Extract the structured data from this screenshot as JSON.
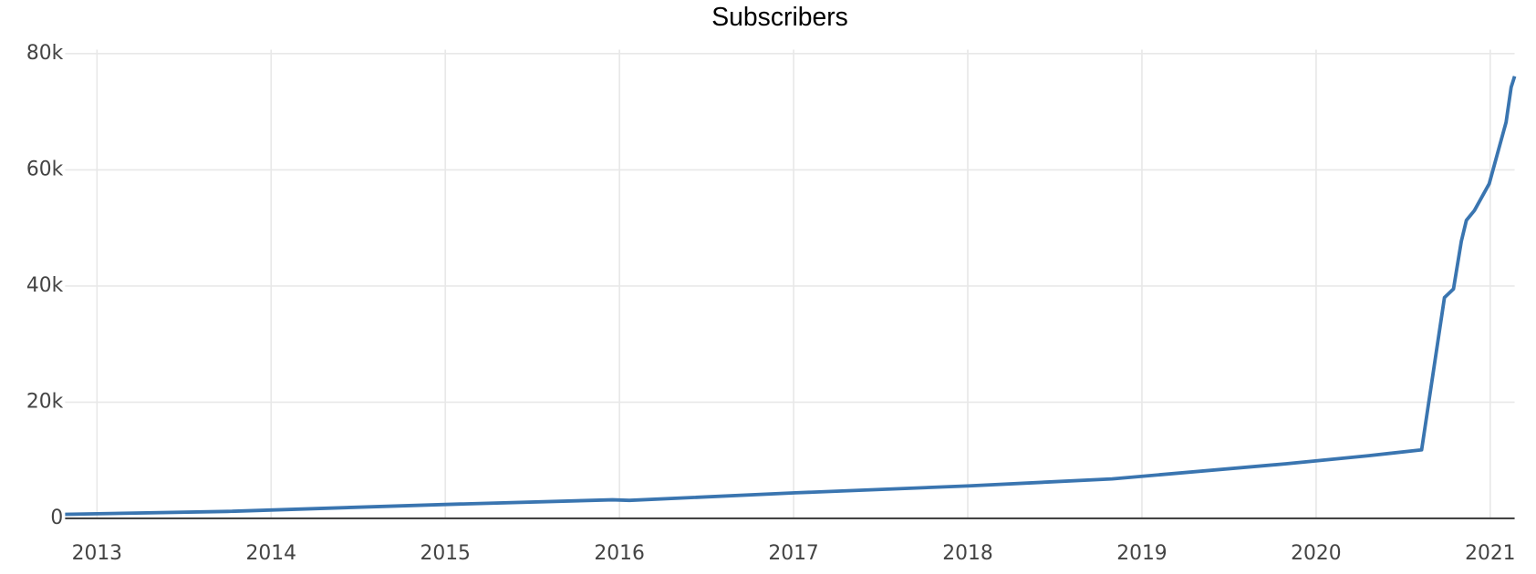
{
  "chart_data": {
    "type": "line",
    "title": "Subscribers",
    "xlim": [
      2012.817,
      2021.14
    ],
    "xticks": [
      2013,
      2014,
      2015,
      2016,
      2017,
      2018,
      2019,
      2020,
      2021
    ],
    "ylim": [
      0,
      80000
    ],
    "yticks": [
      0,
      {
        "value": 20000,
        "label": "20k"
      },
      {
        "value": 40000,
        "label": "40k"
      },
      {
        "value": 60000,
        "label": "60k"
      },
      {
        "value": 80000,
        "label": "80k"
      }
    ],
    "grid": true,
    "x": [
      2012.817,
      2013.749,
      2015.0,
      2015.96,
      2016.057,
      2017.011,
      2018.011,
      2018.829,
      2019.829,
      2020.303,
      2020.606,
      2020.737,
      2020.789,
      2020.834,
      2020.863,
      2020.909,
      2020.994,
      2021.091,
      2021.12,
      2021.14
    ],
    "series": [
      {
        "name": "Subscribers",
        "color": "#3a75b0",
        "values": [
          700,
          1200,
          2400,
          3200,
          3100,
          4400,
          5600,
          6800,
          9400,
          10800,
          11800,
          38000,
          39500,
          47700,
          51300,
          53000,
          57600,
          68200,
          74200,
          76100
        ]
      }
    ]
  }
}
